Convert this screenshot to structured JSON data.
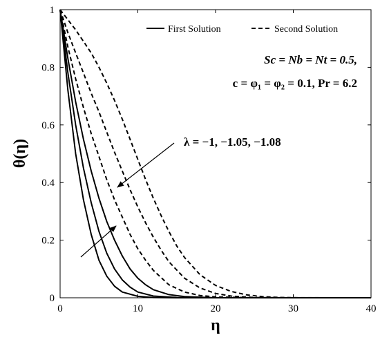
{
  "chart_data": {
    "type": "line",
    "xlabel": "η",
    "ylabel": "θ(η)",
    "xlim": [
      0,
      40
    ],
    "ylim": [
      0,
      1
    ],
    "xticks": [
      0,
      10,
      20,
      30,
      40
    ],
    "yticks": [
      0,
      0.2,
      0.4,
      0.6,
      0.8,
      1
    ],
    "ytick_labels": [
      "0",
      "0.2",
      "0.4",
      "0.6",
      "0.8",
      "1"
    ],
    "grid": false,
    "legend_position": "top-right",
    "legend": [
      {
        "label": "First Solution",
        "style": "solid"
      },
      {
        "label": "Second Solution",
        "style": "dashed"
      }
    ],
    "annotations": {
      "params_line1": "Sc = Nb = Nt = 0.5,",
      "params_line2": "c = φ₁ = φ₂ = 0.1, Pr = 6.2",
      "lambda_label": "λ = −1, −1.05, −1.08"
    },
    "series": [
      {
        "group": "First Solution",
        "lambda": "-1",
        "style": "solid",
        "x": [
          0,
          1,
          2,
          3,
          4,
          5,
          6,
          7,
          8,
          10,
          12,
          15,
          20,
          40
        ],
        "y": [
          1,
          0.72,
          0.5,
          0.34,
          0.22,
          0.13,
          0.075,
          0.04,
          0.02,
          0.005,
          0.001,
          0,
          0,
          0
        ]
      },
      {
        "group": "First Solution",
        "lambda": "-1.05",
        "style": "solid",
        "x": [
          0,
          1,
          2,
          3,
          4,
          5,
          6,
          7,
          8,
          9,
          10,
          12,
          15,
          20,
          40
        ],
        "y": [
          1,
          0.78,
          0.6,
          0.45,
          0.33,
          0.23,
          0.155,
          0.1,
          0.062,
          0.037,
          0.02,
          0.006,
          0.001,
          0,
          0
        ]
      },
      {
        "group": "First Solution",
        "lambda": "-1.08",
        "style": "solid",
        "x": [
          0,
          1,
          2,
          3,
          4,
          5,
          6,
          7,
          8,
          9,
          10,
          11,
          12,
          14,
          16,
          20,
          40
        ],
        "y": [
          1,
          0.83,
          0.68,
          0.55,
          0.44,
          0.345,
          0.265,
          0.2,
          0.145,
          0.1,
          0.068,
          0.045,
          0.028,
          0.011,
          0.004,
          0,
          0
        ]
      },
      {
        "group": "Second Solution",
        "lambda": "-1",
        "style": "dashed",
        "x": [
          0,
          1,
          2,
          3,
          4,
          5,
          6,
          7,
          8,
          9,
          10,
          11,
          12,
          14,
          16,
          18,
          20,
          25,
          40
        ],
        "y": [
          1,
          0.87,
          0.76,
          0.66,
          0.57,
          0.49,
          0.41,
          0.34,
          0.28,
          0.22,
          0.17,
          0.13,
          0.095,
          0.045,
          0.02,
          0.008,
          0.003,
          0,
          0
        ]
      },
      {
        "group": "Second Solution",
        "lambda": "-1.05",
        "style": "dashed",
        "x": [
          0,
          1,
          2,
          3,
          4,
          5,
          6,
          7,
          8,
          9,
          10,
          11,
          12,
          13,
          14,
          16,
          18,
          20,
          22,
          25,
          30,
          40
        ],
        "y": [
          1,
          0.92,
          0.85,
          0.78,
          0.71,
          0.645,
          0.575,
          0.505,
          0.44,
          0.375,
          0.315,
          0.26,
          0.21,
          0.165,
          0.125,
          0.068,
          0.034,
          0.015,
          0.006,
          0.001,
          0,
          0
        ]
      },
      {
        "group": "Second Solution",
        "lambda": "-1.08",
        "style": "dashed",
        "x": [
          0,
          1,
          2,
          3,
          4,
          5,
          6,
          7,
          8,
          9,
          10,
          11,
          12,
          13,
          14,
          15,
          16,
          18,
          20,
          22,
          24,
          26,
          28,
          30,
          35,
          40
        ],
        "y": [
          1,
          0.965,
          0.93,
          0.89,
          0.85,
          0.8,
          0.745,
          0.685,
          0.62,
          0.55,
          0.48,
          0.41,
          0.345,
          0.285,
          0.23,
          0.18,
          0.14,
          0.08,
          0.043,
          0.022,
          0.01,
          0.004,
          0.0015,
          0.0005,
          0,
          0
        ]
      }
    ]
  }
}
